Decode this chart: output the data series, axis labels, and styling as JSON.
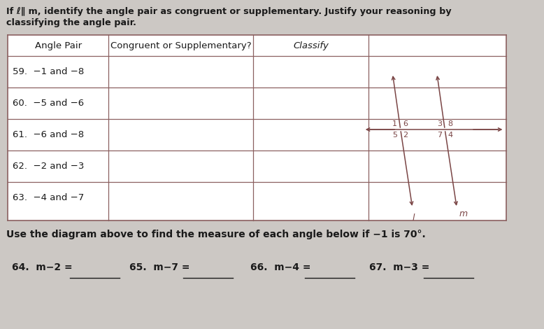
{
  "bg_color": "#ccc8c4",
  "title_line1": "If ℓ∥ m, identify the angle pair as congruent or supplementary. Justify your reasoning by",
  "title_line2": "classifying the angle pair.",
  "table_headers": [
    "Angle Pair",
    "Congruent or Supplementary?",
    "Classify"
  ],
  "table_rows": [
    "59.  −1 and −8",
    "60.  −5 and −6",
    "61.  −6 and −8",
    "62.  −2 and −3",
    "63.  −4 and −7"
  ],
  "bottom_text": "Use the diagram above to find the measure of each angle below if −1 is 70°.",
  "prob_labels": [
    "64.  m−2 =",
    "65.  m−7 =",
    "66.  m−4 =",
    "67.  m−3 ="
  ],
  "table_line_color": "#8B6060",
  "text_color": "#1a1a1a",
  "diag_color": "#7a4545"
}
